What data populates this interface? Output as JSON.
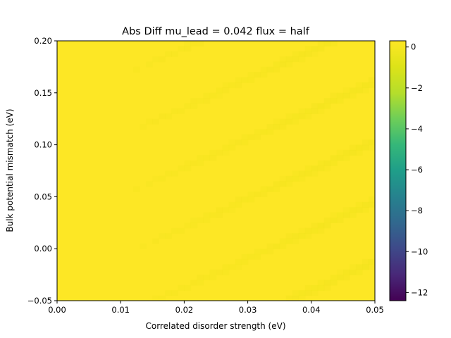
{
  "chart_data": {
    "type": "heatmap",
    "title": "Abs Diff mu_lead = 0.042 flux = half",
    "xlabel": "Correlated disorder strength (eV)",
    "ylabel": "Bulk potential mismatch (eV)",
    "xlim": [
      0.0,
      0.05
    ],
    "ylim": [
      -0.05,
      0.2
    ],
    "x_ticks": [
      "0.00",
      "0.01",
      "0.02",
      "0.03",
      "0.04",
      "0.05"
    ],
    "y_ticks": [
      "−0.05",
      "0.00",
      "0.05",
      "0.10",
      "0.15",
      "0.20"
    ],
    "grid": false,
    "colormap": "viridis",
    "colorbar": {
      "range": [
        -12.4,
        0.3
      ],
      "ticks": [
        "0",
        "−2",
        "−4",
        "−6",
        "−8",
        "−10",
        "−12"
      ]
    },
    "grid_size": {
      "nx": 50,
      "ny": 50
    },
    "value_summary": {
      "base_level": 0.3,
      "stripe_level": 0.05,
      "note": "Nearly uniform near 0; faint diagonal bands of slightly lower values rising toward the right."
    },
    "colors": {
      "high": "#fde725",
      "low": "#440154",
      "stripe": "#f2e41d"
    }
  }
}
